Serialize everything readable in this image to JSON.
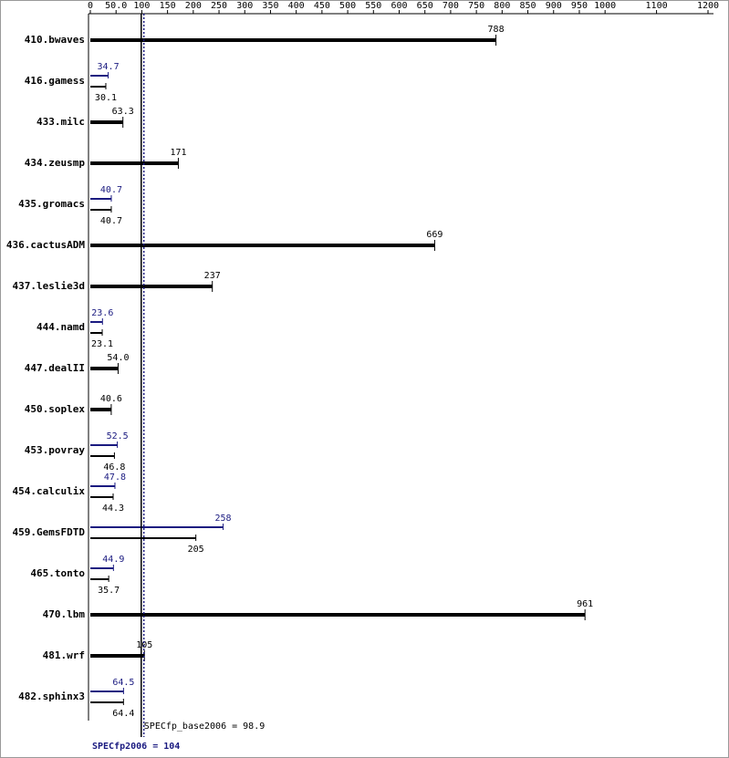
{
  "chart_data": {
    "type": "bar",
    "orientation": "horizontal",
    "categories": [
      "410.bwaves",
      "416.gamess",
      "433.milc",
      "434.zeusmp",
      "435.gromacs",
      "436.cactusADM",
      "437.leslie3d",
      "444.namd",
      "447.dealII",
      "450.soplex",
      "453.povray",
      "454.calculix",
      "459.GemsFDTD",
      "465.tonto",
      "470.lbm",
      "481.wrf",
      "482.sphinx3"
    ],
    "series": [
      {
        "color": "#1a1a80",
        "values": [
          null,
          34.7,
          null,
          null,
          40.7,
          null,
          null,
          23.6,
          null,
          null,
          52.5,
          47.8,
          258,
          44.9,
          null,
          null,
          64.5
        ]
      },
      {
        "color": "#000000",
        "values": [
          788,
          30.1,
          63.3,
          171,
          40.7,
          669,
          237,
          23.1,
          54,
          40.6,
          46.8,
          44.3,
          205,
          35.7,
          961,
          105,
          64.4
        ],
        "value_labels": [
          "788",
          "30.1",
          "63.3",
          "171",
          "40.7",
          "669",
          "237",
          "23.1",
          "54.0",
          "40.6",
          "46.8",
          "44.3",
          "205",
          "35.7",
          "961",
          "105",
          "64.4"
        ]
      }
    ],
    "xlim": [
      0,
      1200
    ],
    "xticks": [
      0,
      {
        "value": 50,
        "label": "50.0"
      },
      100,
      150,
      200,
      250,
      300,
      350,
      400,
      450,
      500,
      550,
      600,
      650,
      700,
      750,
      800,
      850,
      900,
      950,
      1000,
      1100,
      1200
    ],
    "reference_lines": [
      {
        "label": "SPECfp_base2006 = 98.9",
        "value": 98.9,
        "color": "#000000",
        "style": "solid"
      },
      {
        "label": "SPECfp2006 = 104",
        "value": 104,
        "color": "#1a1a80",
        "style": "dotted"
      }
    ]
  }
}
